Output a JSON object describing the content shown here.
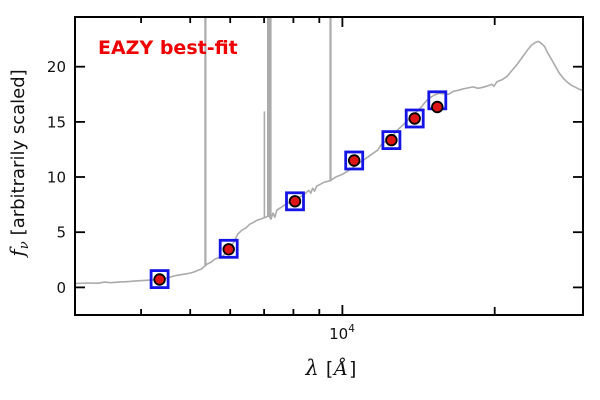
{
  "figure": {
    "annotation": {
      "text": "EAZY best-fit",
      "color": "#ee0000"
    },
    "axes": {
      "x": {
        "label_symbol": "λ",
        "label_bracket_open": "[",
        "label_unit": "Å",
        "label_bracket_close": "]",
        "major_label_base": "10",
        "major_label_exp": "4",
        "ticks": [
          {
            "value": 4000,
            "len": 5
          },
          {
            "value": 5000,
            "len": 5
          },
          {
            "value": 6000,
            "len": 5
          },
          {
            "value": 7000,
            "len": 5
          },
          {
            "value": 8000,
            "len": 5
          },
          {
            "value": 9000,
            "len": 5
          },
          {
            "value": 10000,
            "len": 9,
            "major": true
          },
          {
            "value": 20000,
            "len": 7
          }
        ]
      },
      "y": {
        "label_math": "f",
        "label_sub": "ν",
        "label_rest": "[arbitrarily scaled]",
        "ticks": [
          {
            "value": 0,
            "label": "0"
          },
          {
            "value": 5,
            "label": "5"
          },
          {
            "value": 10,
            "label": "10"
          },
          {
            "value": 15,
            "label": "15"
          },
          {
            "value": 20,
            "label": "20"
          }
        ]
      }
    }
  },
  "chart_data": {
    "type": "line",
    "title": "",
    "xlabel": "λ [Å]",
    "ylabel": "fν [arbitrarily scaled]",
    "x_scale": "log",
    "xlim": [
      2960,
      29900
    ],
    "ylim": [
      -2.5,
      24.5
    ],
    "grid": false,
    "legend": "none",
    "colors": {
      "spectrum": "#ababab",
      "model": "#1414e6",
      "observed": "#df1414",
      "marker_edge": "#000000",
      "axis": "#000000"
    },
    "series": [
      {
        "name": "best-fit template spectrum",
        "type": "line",
        "color": "#ababab",
        "points": [
          [
            2960,
            0.35
          ],
          [
            3140,
            0.4
          ],
          [
            3290,
            0.38
          ],
          [
            3390,
            0.48
          ],
          [
            3480,
            0.43
          ],
          [
            3610,
            0.48
          ],
          [
            3740,
            0.52
          ],
          [
            3880,
            0.57
          ],
          [
            4020,
            0.62
          ],
          [
            4170,
            0.66
          ],
          [
            4330,
            0.72
          ],
          [
            4440,
            0.8
          ],
          [
            4560,
            0.93
          ],
          [
            4680,
            1.07
          ],
          [
            4810,
            1.16
          ],
          [
            4950,
            1.25
          ],
          [
            5080,
            1.39
          ],
          [
            5190,
            1.57
          ],
          [
            5260,
            1.66
          ],
          [
            5330,
            1.89
          ],
          [
            5400,
            2.11
          ],
          [
            5500,
            2.29
          ],
          [
            5590,
            2.56
          ],
          [
            5690,
            2.7
          ],
          [
            5800,
            2.84
          ],
          [
            5870,
            3.11
          ],
          [
            5940,
            3.38
          ],
          [
            6020,
            3.74
          ],
          [
            6100,
            4.1
          ],
          [
            6210,
            4.83
          ],
          [
            6330,
            5.19
          ],
          [
            6440,
            5.37
          ],
          [
            6560,
            5.73
          ],
          [
            6680,
            5.91
          ],
          [
            6780,
            6.09
          ],
          [
            6870,
            6.18
          ],
          [
            6960,
            6.27
          ],
          [
            7060,
            6.36
          ],
          [
            7150,
            6.5
          ],
          [
            7220,
            6.18
          ],
          [
            7290,
            6.73
          ],
          [
            7350,
            6.36
          ],
          [
            7420,
            7.0
          ],
          [
            7520,
            7.18
          ],
          [
            7630,
            7.36
          ],
          [
            7730,
            7.54
          ],
          [
            7870,
            7.72
          ],
          [
            8010,
            7.9
          ],
          [
            8160,
            8.08
          ],
          [
            8310,
            8.27
          ],
          [
            8460,
            8.54
          ],
          [
            8580,
            8.81
          ],
          [
            8660,
            8.54
          ],
          [
            8730,
            8.99
          ],
          [
            8810,
            8.72
          ],
          [
            8890,
            9.17
          ],
          [
            9050,
            9.35
          ],
          [
            9210,
            9.53
          ],
          [
            9380,
            9.62
          ],
          [
            9550,
            9.8
          ],
          [
            9730,
            10.03
          ],
          [
            10010,
            10.26
          ],
          [
            10240,
            10.53
          ],
          [
            10470,
            10.84
          ],
          [
            10710,
            11.16
          ],
          [
            10960,
            11.48
          ],
          [
            11210,
            11.79
          ],
          [
            11470,
            12.11
          ],
          [
            11740,
            12.43
          ],
          [
            11950,
            12.97
          ],
          [
            12170,
            13.24
          ],
          [
            12500,
            13.51
          ],
          [
            12770,
            14.15
          ],
          [
            13090,
            14.6
          ],
          [
            13400,
            15.05
          ],
          [
            13720,
            15.51
          ],
          [
            14050,
            15.96
          ],
          [
            14310,
            16.32
          ],
          [
            14570,
            16.77
          ],
          [
            14830,
            17.13
          ],
          [
            15170,
            17.41
          ],
          [
            15510,
            17.59
          ],
          [
            15860,
            17.54
          ],
          [
            16210,
            17.5
          ],
          [
            16580,
            17.77
          ],
          [
            16950,
            17.86
          ],
          [
            17330,
            17.99
          ],
          [
            17720,
            18.08
          ],
          [
            18120,
            18.17
          ],
          [
            18540,
            18.04
          ],
          [
            18960,
            18.13
          ],
          [
            19390,
            18.27
          ],
          [
            19750,
            18.4
          ],
          [
            19930,
            18.22
          ],
          [
            20200,
            18.63
          ],
          [
            20670,
            18.81
          ],
          [
            21160,
            19.13
          ],
          [
            21650,
            19.67
          ],
          [
            22160,
            20.21
          ],
          [
            22670,
            20.84
          ],
          [
            23200,
            21.48
          ],
          [
            23630,
            21.93
          ],
          [
            24070,
            22.2
          ],
          [
            24410,
            22.29
          ],
          [
            24740,
            22.11
          ],
          [
            25090,
            21.84
          ],
          [
            25430,
            21.3
          ],
          [
            25900,
            20.66
          ],
          [
            26370,
            20.03
          ],
          [
            26860,
            19.4
          ],
          [
            27350,
            18.94
          ],
          [
            27860,
            18.58
          ],
          [
            28370,
            18.31
          ],
          [
            28890,
            18.13
          ],
          [
            29420,
            17.95
          ],
          [
            29870,
            17.86
          ]
        ]
      },
      {
        "name": "model photometry",
        "type": "scatter",
        "marker": "square",
        "color": "#1414e6",
        "x": [
          4350,
          5960,
          8060,
          10550,
          12500,
          13900,
          15400
        ],
        "y": [
          0.75,
          3.5,
          7.8,
          11.5,
          13.35,
          15.3,
          16.95
        ]
      },
      {
        "name": "observed photometry",
        "type": "scatter",
        "marker": "circle",
        "color": "#df1414",
        "x": [
          4350,
          5960,
          8060,
          10550,
          12500,
          13900,
          15400
        ],
        "y": [
          0.72,
          3.45,
          7.8,
          11.5,
          13.35,
          15.3,
          16.35
        ]
      }
    ],
    "emission_lines": [
      {
        "lambda": 5360,
        "f_top": null,
        "f_bottom": 1.9,
        "stroke_px": 2.2
      },
      {
        "lambda": 7010,
        "f_top": 15.95,
        "f_bottom": 6.3,
        "stroke_px": 1.6
      },
      {
        "lambda": 7170,
        "f_top": null,
        "f_bottom": 6.4,
        "stroke_px": 4.6
      },
      {
        "lambda": 9470,
        "f_top": null,
        "f_bottom": 9.6,
        "stroke_px": 2.2
      }
    ]
  }
}
